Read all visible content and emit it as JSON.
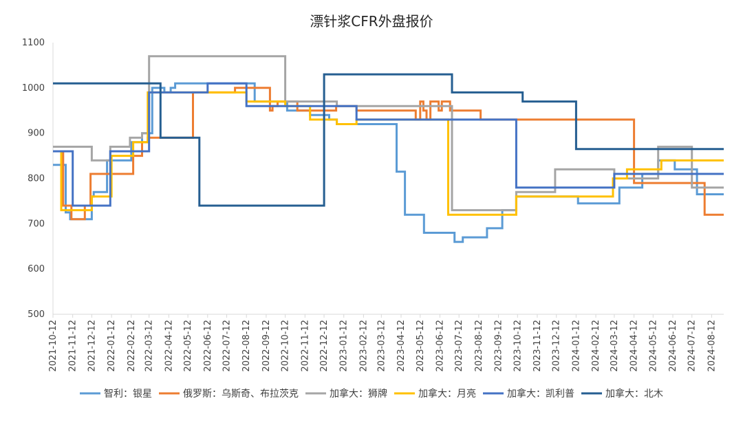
{
  "chart_data": {
    "type": "line",
    "title": "漂针浆CFR外盘报价",
    "xlabel": "",
    "ylabel": "",
    "ylim": [
      500,
      1100
    ],
    "yticks": [
      500,
      600,
      700,
      800,
      900,
      1000,
      1100
    ],
    "x_range": [
      "2021-10-12",
      "2024-08-31"
    ],
    "x_ticks": [
      "2021-10-12",
      "2021-11-12",
      "2021-12-12",
      "2022-01-12",
      "2022-02-12",
      "2022-03-12",
      "2022-04-12",
      "2022-05-12",
      "2022-06-12",
      "2022-07-12",
      "2022-08-12",
      "2022-09-12",
      "2022-10-12",
      "2022-11-12",
      "2022-12-12",
      "2023-01-12",
      "2023-02-12",
      "2023-03-12",
      "2023-04-12",
      "2023-05-12",
      "2023-06-12",
      "2023-07-12",
      "2023-08-12",
      "2023-09-12",
      "2023-10-12",
      "2023-11-12",
      "2023-12-12",
      "2024-01-12",
      "2024-02-12",
      "2024-03-12",
      "2024-04-12",
      "2024-05-12",
      "2024-06-12",
      "2024-07-12",
      "2024-08-12"
    ],
    "grid": false,
    "legend_position": "bottom",
    "series": [
      {
        "name": "智利：银星",
        "color": "#5B9BD5",
        "points": [
          [
            "2021-10-12",
            830
          ],
          [
            "2021-11-01",
            830
          ],
          [
            "2021-11-01",
            725
          ],
          [
            "2021-11-08",
            725
          ],
          [
            "2021-11-08",
            710
          ],
          [
            "2021-12-12",
            710
          ],
          [
            "2021-12-12",
            760
          ],
          [
            "2021-12-15",
            760
          ],
          [
            "2021-12-15",
            770
          ],
          [
            "2022-01-05",
            770
          ],
          [
            "2022-01-05",
            840
          ],
          [
            "2022-02-12",
            840
          ],
          [
            "2022-02-12",
            880
          ],
          [
            "2022-03-01",
            880
          ],
          [
            "2022-03-01",
            900
          ],
          [
            "2022-03-17",
            900
          ],
          [
            "2022-03-17",
            1000
          ],
          [
            "2022-04-05",
            1000
          ],
          [
            "2022-04-05",
            990
          ],
          [
            "2022-04-15",
            990
          ],
          [
            "2022-04-15",
            1000
          ],
          [
            "2022-04-22",
            1000
          ],
          [
            "2022-04-22",
            1010
          ],
          [
            "2022-08-25",
            1010
          ],
          [
            "2022-08-25",
            970
          ],
          [
            "2022-10-15",
            970
          ],
          [
            "2022-10-15",
            950
          ],
          [
            "2022-11-20",
            950
          ],
          [
            "2022-11-20",
            940
          ],
          [
            "2022-12-20",
            940
          ],
          [
            "2022-12-20",
            930
          ],
          [
            "2023-01-01",
            930
          ],
          [
            "2023-01-01",
            920
          ],
          [
            "2023-04-05",
            920
          ],
          [
            "2023-04-05",
            815
          ],
          [
            "2023-04-18",
            815
          ],
          [
            "2023-04-18",
            720
          ],
          [
            "2023-05-18",
            720
          ],
          [
            "2023-05-18",
            680
          ],
          [
            "2023-07-05",
            680
          ],
          [
            "2023-07-05",
            660
          ],
          [
            "2023-07-18",
            660
          ],
          [
            "2023-07-18",
            670
          ],
          [
            "2023-08-25",
            670
          ],
          [
            "2023-08-25",
            690
          ],
          [
            "2023-09-18",
            690
          ],
          [
            "2023-09-18",
            730
          ],
          [
            "2023-10-10",
            730
          ],
          [
            "2023-10-10",
            760
          ],
          [
            "2024-01-15",
            760
          ],
          [
            "2024-01-15",
            745
          ],
          [
            "2024-03-20",
            745
          ],
          [
            "2024-03-20",
            780
          ],
          [
            "2024-04-25",
            780
          ],
          [
            "2024-04-25",
            810
          ],
          [
            "2024-05-20",
            810
          ],
          [
            "2024-05-20",
            840
          ],
          [
            "2024-06-15",
            840
          ],
          [
            "2024-06-15",
            820
          ],
          [
            "2024-07-20",
            820
          ],
          [
            "2024-07-20",
            765
          ],
          [
            "2024-08-31",
            765
          ]
        ]
      },
      {
        "name": "俄罗斯：乌斯奇、布拉茨克",
        "color": "#ED7D31",
        "points": [
          [
            "2021-10-12",
            860
          ],
          [
            "2021-10-28",
            860
          ],
          [
            "2021-10-28",
            740
          ],
          [
            "2021-11-10",
            740
          ],
          [
            "2021-11-10",
            710
          ],
          [
            "2021-12-01",
            710
          ],
          [
            "2021-12-01",
            740
          ],
          [
            "2021-12-10",
            740
          ],
          [
            "2021-12-10",
            810
          ],
          [
            "2022-02-15",
            810
          ],
          [
            "2022-02-15",
            850
          ],
          [
            "2022-03-01",
            850
          ],
          [
            "2022-03-01",
            880
          ],
          [
            "2022-03-10",
            880
          ],
          [
            "2022-03-10",
            890
          ],
          [
            "2022-05-20",
            890
          ],
          [
            "2022-05-20",
            990
          ],
          [
            "2022-07-25",
            990
          ],
          [
            "2022-07-25",
            1000
          ],
          [
            "2022-09-18",
            1000
          ],
          [
            "2022-09-18",
            950
          ],
          [
            "2022-09-22",
            950
          ],
          [
            "2022-09-22",
            960
          ],
          [
            "2022-09-30",
            960
          ],
          [
            "2022-09-30",
            970
          ],
          [
            "2022-10-31",
            970
          ],
          [
            "2022-10-31",
            950
          ],
          [
            "2022-12-31",
            950
          ],
          [
            "2022-12-31",
            960
          ],
          [
            "2023-02-01",
            960
          ],
          [
            "2023-02-01",
            950
          ],
          [
            "2023-05-05",
            950
          ],
          [
            "2023-05-05",
            930
          ],
          [
            "2023-05-12",
            930
          ],
          [
            "2023-05-12",
            970
          ],
          [
            "2023-05-17",
            970
          ],
          [
            "2023-05-17",
            950
          ],
          [
            "2023-05-22",
            950
          ],
          [
            "2023-05-22",
            930
          ],
          [
            "2023-05-28",
            930
          ],
          [
            "2023-05-28",
            970
          ],
          [
            "2023-06-10",
            970
          ],
          [
            "2023-06-10",
            950
          ],
          [
            "2023-06-15",
            950
          ],
          [
            "2023-06-15",
            970
          ],
          [
            "2023-06-28",
            970
          ],
          [
            "2023-06-28",
            950
          ],
          [
            "2023-08-15",
            950
          ],
          [
            "2023-08-15",
            930
          ],
          [
            "2023-10-08",
            930
          ],
          [
            "2023-10-08",
            930
          ],
          [
            "2024-04-12",
            930
          ],
          [
            "2024-04-12",
            790
          ],
          [
            "2024-08-01",
            790
          ],
          [
            "2024-08-01",
            720
          ],
          [
            "2024-08-31",
            720
          ]
        ]
      },
      {
        "name": "加拿大：狮牌",
        "color": "#A5A5A5",
        "points": [
          [
            "2021-10-12",
            870
          ],
          [
            "2021-12-12",
            870
          ],
          [
            "2021-12-12",
            840
          ],
          [
            "2022-01-10",
            840
          ],
          [
            "2022-01-10",
            870
          ],
          [
            "2022-02-10",
            870
          ],
          [
            "2022-02-10",
            890
          ],
          [
            "2022-03-01",
            890
          ],
          [
            "2022-03-01",
            900
          ],
          [
            "2022-03-12",
            900
          ],
          [
            "2022-03-12",
            1070
          ],
          [
            "2022-10-12",
            1070
          ],
          [
            "2022-10-12",
            970
          ],
          [
            "2023-01-01",
            970
          ],
          [
            "2023-01-01",
            960
          ],
          [
            "2023-07-01",
            960
          ],
          [
            "2023-07-01",
            730
          ],
          [
            "2023-10-10",
            730
          ],
          [
            "2023-10-10",
            770
          ],
          [
            "2023-12-10",
            770
          ],
          [
            "2023-12-10",
            820
          ],
          [
            "2024-03-12",
            820
          ],
          [
            "2024-03-12",
            800
          ],
          [
            "2024-05-20",
            800
          ],
          [
            "2024-05-20",
            870
          ],
          [
            "2024-07-12",
            870
          ],
          [
            "2024-07-12",
            780
          ],
          [
            "2024-08-31",
            780
          ]
        ]
      },
      {
        "name": "加拿大：月亮",
        "color": "#FFC000",
        "points": [
          [
            "2021-10-12",
            860
          ],
          [
            "2021-10-25",
            860
          ],
          [
            "2021-10-25",
            730
          ],
          [
            "2021-12-12",
            730
          ],
          [
            "2021-12-12",
            760
          ],
          [
            "2022-01-12",
            760
          ],
          [
            "2022-01-12",
            850
          ],
          [
            "2022-02-15",
            850
          ],
          [
            "2022-02-15",
            880
          ],
          [
            "2022-03-10",
            880
          ],
          [
            "2022-03-10",
            990
          ],
          [
            "2022-08-12",
            990
          ],
          [
            "2022-08-12",
            970
          ],
          [
            "2022-10-12",
            970
          ],
          [
            "2022-10-12",
            960
          ],
          [
            "2022-11-20",
            960
          ],
          [
            "2022-11-20",
            930
          ],
          [
            "2023-01-01",
            930
          ],
          [
            "2023-01-01",
            920
          ],
          [
            "2023-02-01",
            920
          ],
          [
            "2023-02-01",
            930
          ],
          [
            "2023-06-25",
            930
          ],
          [
            "2023-06-25",
            720
          ],
          [
            "2023-10-10",
            720
          ],
          [
            "2023-10-10",
            760
          ],
          [
            "2024-03-10",
            760
          ],
          [
            "2024-03-10",
            800
          ],
          [
            "2024-04-01",
            800
          ],
          [
            "2024-04-01",
            820
          ],
          [
            "2024-05-25",
            820
          ],
          [
            "2024-05-25",
            840
          ],
          [
            "2024-08-31",
            840
          ]
        ]
      },
      {
        "name": "加拿大：凯利普",
        "color": "#4472C4",
        "points": [
          [
            "2021-10-12",
            860
          ],
          [
            "2021-11-12",
            860
          ],
          [
            "2021-11-12",
            740
          ],
          [
            "2022-01-10",
            740
          ],
          [
            "2022-01-10",
            860
          ],
          [
            "2022-03-12",
            860
          ],
          [
            "2022-03-12",
            990
          ],
          [
            "2022-06-12",
            990
          ],
          [
            "2022-06-12",
            1010
          ],
          [
            "2022-08-12",
            1010
          ],
          [
            "2022-08-12",
            960
          ],
          [
            "2022-12-12",
            960
          ],
          [
            "2022-12-12",
            960
          ],
          [
            "2023-02-01",
            960
          ],
          [
            "2023-02-01",
            930
          ],
          [
            "2023-10-10",
            930
          ],
          [
            "2023-10-10",
            780
          ],
          [
            "2024-03-12",
            780
          ],
          [
            "2024-03-12",
            810
          ],
          [
            "2024-08-31",
            810
          ]
        ]
      },
      {
        "name": "加拿大：北木",
        "color": "#255E91",
        "points": [
          [
            "2021-10-12",
            1010
          ],
          [
            "2022-03-30",
            1010
          ],
          [
            "2022-03-30",
            890
          ],
          [
            "2022-05-30",
            890
          ],
          [
            "2022-05-30",
            740
          ],
          [
            "2022-12-12",
            740
          ],
          [
            "2022-12-12",
            1030
          ],
          [
            "2023-07-01",
            1030
          ],
          [
            "2023-07-01",
            990
          ],
          [
            "2023-10-20",
            990
          ],
          [
            "2023-10-20",
            970
          ],
          [
            "2024-01-12",
            970
          ],
          [
            "2024-01-12",
            865
          ],
          [
            "2024-08-31",
            865
          ]
        ]
      }
    ]
  }
}
